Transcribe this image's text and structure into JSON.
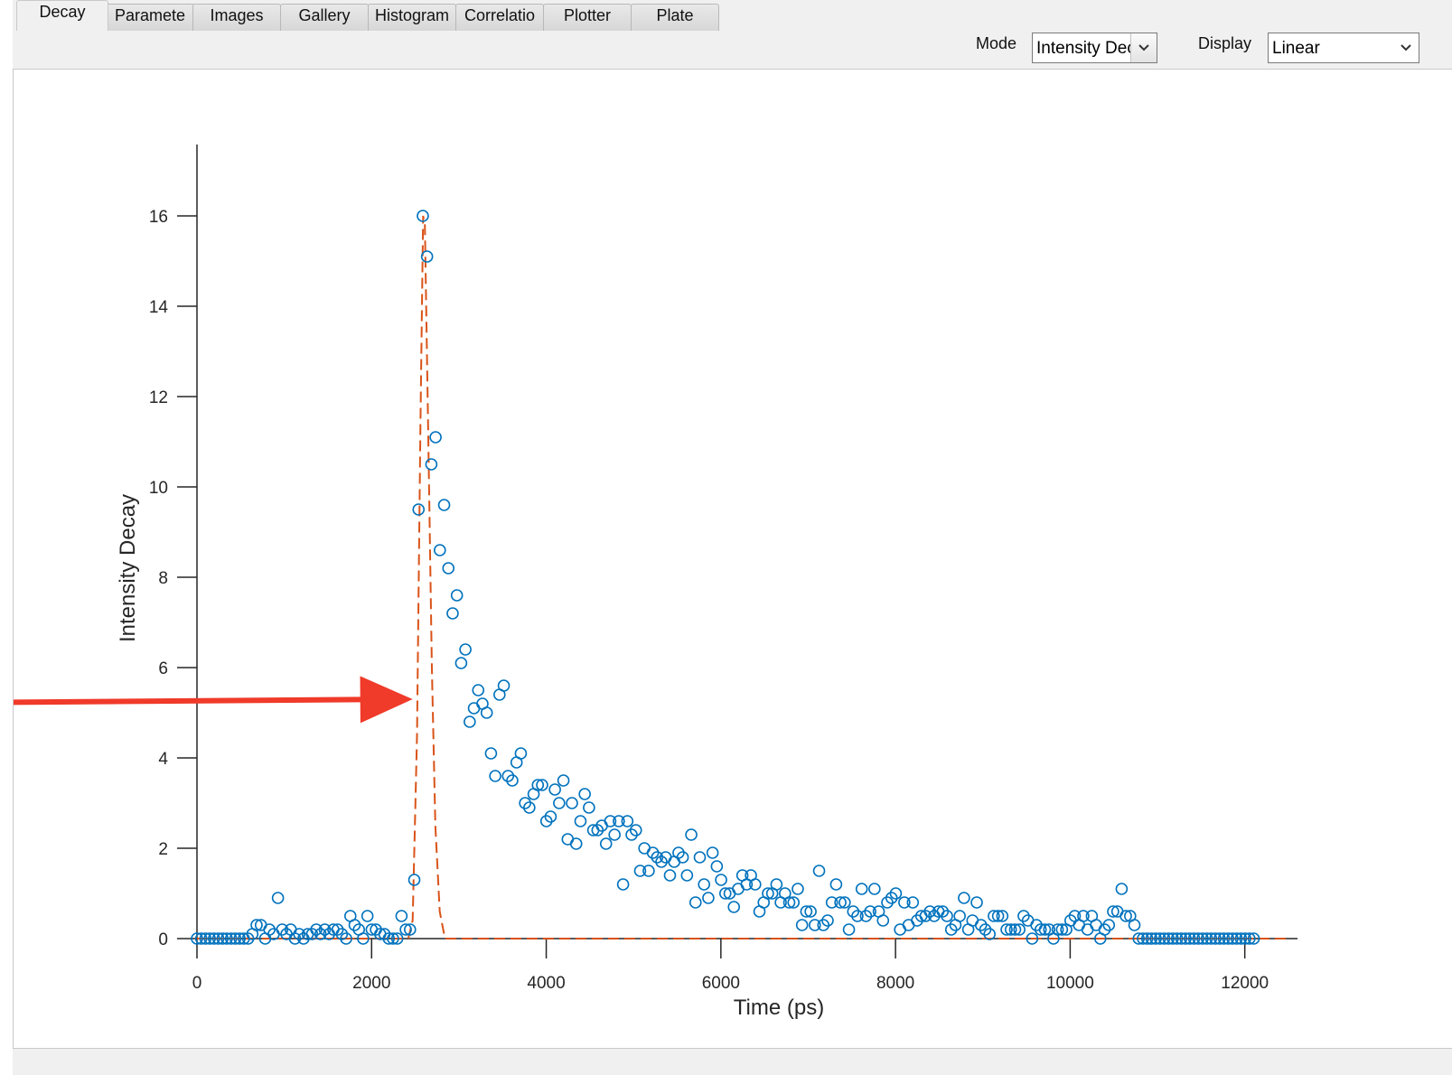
{
  "tabs": [
    {
      "label": "Decay",
      "active": true
    },
    {
      "label": "Paramete"
    },
    {
      "label": "Images"
    },
    {
      "label": "Gallery"
    },
    {
      "label": "Histogram"
    },
    {
      "label": "Correlatio"
    },
    {
      "label": "Plotter"
    },
    {
      "label": "Plate"
    }
  ],
  "controls": {
    "mode_label": "Mode",
    "mode_value": "Intensity Decay",
    "display_label": "Display",
    "display_value": "Linear"
  },
  "icons": {
    "dropdown": "chevron-down-icon",
    "annotation": "red-arrow-icon"
  },
  "colors": {
    "data_points": "#0072bd",
    "fit_curve": "#d95319",
    "annotation_arrow": "#f03a2a"
  },
  "chart_data": {
    "type": "scatter",
    "xlabel": "Time (ps)",
    "ylabel": "Intensity Decay",
    "xlim": [
      0,
      12500
    ],
    "ylim": [
      0,
      17.5
    ],
    "x_ticks": [
      0,
      2000,
      4000,
      6000,
      8000,
      10000,
      12000
    ],
    "y_ticks": [
      0,
      2,
      4,
      6,
      8,
      10,
      12,
      14,
      16
    ],
    "grid": false,
    "series": [
      {
        "style": "markers-open-circle",
        "x_start": 0,
        "x_step": 48.8,
        "values": [
          0,
          0,
          0,
          0,
          0,
          0,
          0,
          0,
          0,
          0,
          0,
          0,
          0,
          0.1,
          0.3,
          0.3,
          0,
          0.2,
          0.1,
          0.9,
          0.2,
          0.1,
          0.2,
          0,
          0.1,
          0,
          0.1,
          0.1,
          0.2,
          0.1,
          0.2,
          0.1,
          0.2,
          0.2,
          0.1,
          0,
          0.5,
          0.3,
          0.2,
          0,
          0.5,
          0.2,
          0.2,
          0.1,
          0.1,
          0,
          0,
          0,
          0.5,
          0.2,
          0.2,
          1.3,
          9.5,
          16,
          15.1,
          10.5,
          11.1,
          8.6,
          9.6,
          8.2,
          7.2,
          7.6,
          6.1,
          6.4,
          4.8,
          5.1,
          5.5,
          5.2,
          5,
          4.1,
          3.6,
          5.4,
          5.6,
          3.6,
          3.5,
          3.9,
          4.1,
          3,
          2.9,
          3.2,
          3.4,
          3.4,
          2.6,
          2.7,
          3.3,
          3,
          3.5,
          2.2,
          3,
          2.1,
          2.6,
          3.2,
          2.9,
          2.4,
          2.4,
          2.5,
          2.1,
          2.6,
          2.3,
          2.6,
          1.2,
          2.6,
          2.3,
          2.4,
          1.5,
          2,
          1.5,
          1.9,
          1.8,
          1.7,
          1.8,
          1.4,
          1.7,
          1.9,
          1.8,
          1.4,
          2.3,
          0.8,
          1.8,
          1.2,
          0.9,
          1.9,
          1.6,
          1.3,
          1,
          1,
          0.7,
          1.1,
          1.4,
          1.2,
          1.4,
          1.2,
          0.6,
          0.8,
          1,
          1,
          1.2,
          0.8,
          1,
          0.8,
          0.8,
          1.1,
          0.3,
          0.6,
          0.6,
          0.3,
          1.5,
          0.3,
          0.4,
          0.8,
          1.2,
          0.8,
          0.8,
          0.2,
          0.6,
          0.5,
          1.1,
          0.5,
          0.6,
          1.1,
          0.6,
          0.4,
          0.8,
          0.9,
          1,
          0.2,
          0.8,
          0.3,
          0.8,
          0.4,
          0.5,
          0.5,
          0.6,
          0.5,
          0.6,
          0.6,
          0.5,
          0.2,
          0.3,
          0.5,
          0.9,
          0.2,
          0.4,
          0.8,
          0.3,
          0.2,
          0.1,
          0.5,
          0.5,
          0.5,
          0.2,
          0.2,
          0.2,
          0.2,
          0.5,
          0.4,
          0,
          0.3,
          0.2,
          0.2,
          0.2,
          0,
          0.2,
          0.2,
          0.2,
          0.4,
          0.5,
          0.3,
          0.5,
          0.2,
          0.5,
          0.3,
          0,
          0.2,
          0.3,
          0.6,
          0.6,
          1.1,
          0.5,
          0.5,
          0.3,
          0,
          0,
          0,
          0,
          0,
          0,
          0,
          0,
          0,
          0,
          0,
          0,
          0,
          0,
          0,
          0,
          0,
          0,
          0,
          0,
          0,
          0,
          0,
          0,
          0,
          0,
          0,
          0
        ]
      },
      {
        "style": "dashed-line",
        "x": [
          0,
          2420,
          2470,
          2520,
          2560,
          2590,
          2610,
          2650,
          2690,
          2730,
          2780,
          2840,
          12500
        ],
        "y": [
          0,
          0,
          0.4,
          4.5,
          11.5,
          16,
          15.8,
          11,
          6,
          2.5,
          0.6,
          0,
          0
        ]
      }
    ],
    "annotations": [
      {
        "type": "arrow",
        "from": [
          -4300,
          5.2
        ],
        "to": [
          2470,
          5.3
        ]
      }
    ]
  }
}
